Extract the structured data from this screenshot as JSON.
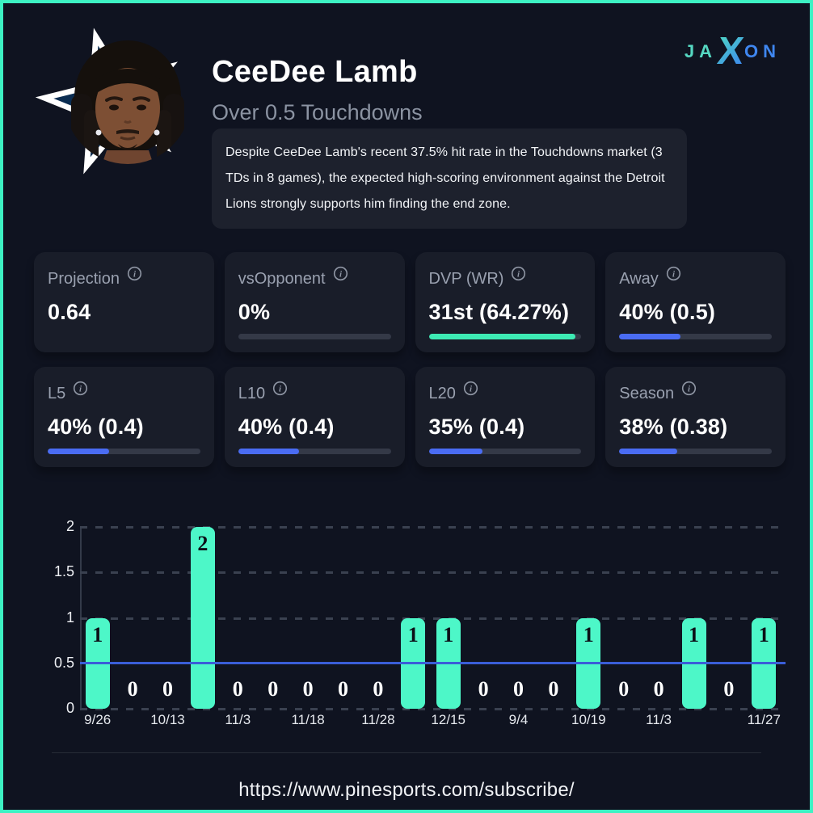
{
  "header": {
    "title": "CeeDee Lamb",
    "subtitle": "Over 0.5 Touchdowns",
    "description": "Despite CeeDee Lamb's recent 37.5% hit rate in the Touchdowns market (3 TDs in 8 games), the expected high-scoring environment against the Detroit Lions strongly supports him finding the end zone."
  },
  "brand": {
    "part1": "JA",
    "part2": "X",
    "part3": "ON"
  },
  "colors": {
    "accent_teal": "#3df2c3",
    "accent_blue": "#4a6cf3",
    "bar_teal": "#4df7c8",
    "reference_blue": "#3a5ed8",
    "card_bg": "#191d29",
    "page_bg": "#0f1320"
  },
  "stats": [
    {
      "label": "Projection",
      "value": "0.64",
      "bar_pct": null,
      "bar_color": null
    },
    {
      "label": "vsOpponent",
      "value": "0%",
      "bar_pct": 0,
      "bar_color": "#4a6cf3"
    },
    {
      "label": "DVP (WR)",
      "value": "31st (64.27%)",
      "bar_pct": 96,
      "bar_color": "#3debb4"
    },
    {
      "label": "Away",
      "value": "40% (0.5)",
      "bar_pct": 40,
      "bar_color": "#4a6cf3"
    },
    {
      "label": "L5",
      "value": "40% (0.4)",
      "bar_pct": 40,
      "bar_color": "#4a6cf3"
    },
    {
      "label": "L10",
      "value": "40% (0.4)",
      "bar_pct": 40,
      "bar_color": "#4a6cf3"
    },
    {
      "label": "L20",
      "value": "35% (0.4)",
      "bar_pct": 35,
      "bar_color": "#4a6cf3"
    },
    {
      "label": "Season",
      "value": "38% (0.38)",
      "bar_pct": 38,
      "bar_color": "#4a6cf3"
    }
  ],
  "chart_data": {
    "type": "bar",
    "values": [
      1,
      0,
      0,
      2,
      0,
      0,
      0,
      0,
      0,
      1,
      1,
      0,
      0,
      0,
      1,
      0,
      0,
      1,
      0,
      1
    ],
    "x_labels": [
      "9/26",
      "",
      "10/13",
      "",
      "11/3",
      "",
      "11/18",
      "",
      "11/28",
      "",
      "12/15",
      "",
      "9/4",
      "",
      "10/19",
      "",
      "11/3",
      "",
      "",
      "11/27"
    ],
    "yticks": [
      0,
      0.5,
      1,
      1.5,
      2
    ],
    "ylim": [
      0,
      2
    ],
    "reference_line": 0.5,
    "bar_color": "#4df7c8",
    "reference_color": "#3a5ed8",
    "grid": "dashed-horizontal",
    "legend": "none"
  },
  "footer": {
    "url": "https://www.pinesports.com/subscribe/"
  }
}
